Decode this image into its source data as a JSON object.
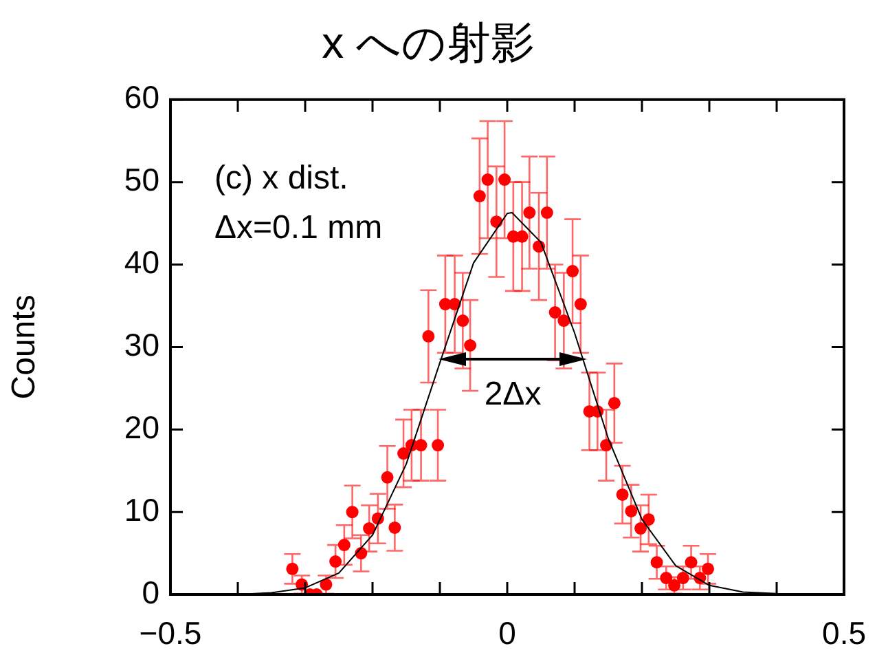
{
  "chart_data": {
    "type": "scatter",
    "title": "x への射影",
    "ylabel": "Counts",
    "xlim": [
      -0.5,
      0.5
    ],
    "xticks": [
      {
        "value": -0.5,
        "label": "−0.5"
      },
      {
        "value": -0.4,
        "label": null
      },
      {
        "value": -0.3,
        "label": null
      },
      {
        "value": -0.2,
        "label": null
      },
      {
        "value": -0.1,
        "label": null
      },
      0,
      {
        "value": 0.1,
        "label": null
      },
      {
        "value": 0.2,
        "label": null
      },
      {
        "value": 0.3,
        "label": null
      },
      {
        "value": 0.4,
        "label": null
      },
      0.5
    ],
    "ylim": [
      0,
      60
    ],
    "yticks": [
      0,
      10,
      20,
      30,
      40,
      50,
      60
    ],
    "grid": false,
    "legend": false,
    "marker": "circle",
    "annotations": [
      "(c) x dist.",
      "Δx=0.1 mm",
      "2Δx"
    ],
    "series": [
      {
        "color": "#ff0000",
        "x": [
          -0.319,
          -0.305,
          -0.293,
          -0.283,
          -0.269,
          -0.255,
          -0.242,
          -0.23,
          -0.217,
          -0.205,
          -0.192,
          -0.178,
          -0.167,
          -0.154,
          -0.142,
          -0.128,
          -0.117,
          -0.103,
          -0.092,
          -0.078,
          -0.066,
          -0.055,
          -0.041,
          -0.029,
          -0.016,
          -0.004,
          0.009,
          0.022,
          0.033,
          0.047,
          0.059,
          0.071,
          0.084,
          0.097,
          0.109,
          0.122,
          0.134,
          0.147,
          0.159,
          0.171,
          0.184,
          0.198,
          0.21,
          0.222,
          0.236,
          0.248,
          0.261,
          0.273,
          0.286,
          0.298
        ],
        "values": [
          3.1,
          1.2,
          0,
          0,
          1.2,
          4,
          6,
          10,
          5,
          8,
          9.2,
          14.2,
          8.1,
          17.1,
          18.1,
          18.1,
          31.3,
          18.1,
          35.2,
          35.2,
          33.2,
          30.2,
          48.3,
          50.3,
          45.2,
          50.3,
          43.4,
          43.4,
          46.3,
          42.2,
          46.3,
          34.2,
          33.2,
          39.2,
          35.2,
          22.2,
          22.2,
          18.1,
          23.2,
          12.1,
          10.1,
          8,
          9.1,
          3.9,
          2,
          1.1,
          2,
          3.9,
          2,
          3.1
        ],
        "errors": [
          1.8,
          1.1,
          null,
          null,
          1.1,
          2,
          2.4,
          3.2,
          2.2,
          2.8,
          3,
          3.8,
          2.8,
          4.1,
          4.3,
          4.3,
          5.6,
          4.3,
          5.9,
          5.9,
          5.8,
          5.5,
          7,
          7.1,
          6.7,
          7.1,
          6.6,
          6.6,
          6.8,
          6.5,
          6.8,
          5.8,
          5.8,
          6.3,
          5.9,
          4.7,
          4.7,
          4.3,
          4.8,
          3.5,
          3.2,
          2.8,
          3,
          2,
          1.4,
          1,
          1.4,
          2,
          1.4,
          1.8
        ]
      },
      {
        "type": "line",
        "color": "#000000",
        "marker": "none",
        "line_style": "solid",
        "x": [
          -0.5,
          -0.45,
          -0.4,
          -0.35,
          -0.3,
          -0.25,
          -0.2,
          -0.15,
          -0.1,
          -0.05,
          0,
          0.007,
          0.05,
          0.1,
          0.15,
          0.2,
          0.25,
          0.3,
          0.35,
          0.4,
          0.45,
          0.5
        ],
        "values": [
          0,
          0,
          0,
          0.2,
          0.8,
          2.6,
          7.2,
          15.8,
          28.1,
          40.2,
          46.2,
          46.3,
          42.7,
          31.7,
          18.9,
          9.1,
          3.5,
          1.1,
          0.3,
          0.1,
          0,
          0
        ]
      }
    ]
  }
}
